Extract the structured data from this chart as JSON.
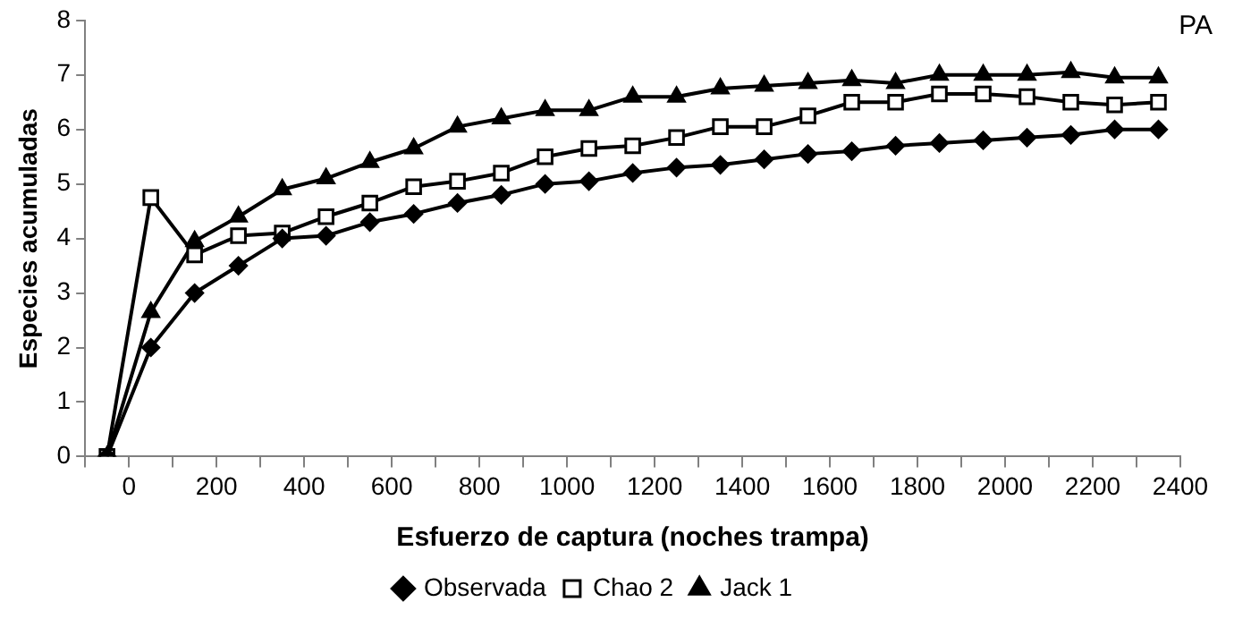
{
  "chart_data": {
    "type": "line",
    "xlabel": "Esfuerzo de captura (noches trampa)",
    "ylabel": "Especies acumuladas",
    "annotations": [
      "PA"
    ],
    "x": [
      -50,
      50,
      150,
      250,
      350,
      450,
      550,
      650,
      750,
      850,
      950,
      1050,
      1150,
      1250,
      1350,
      1450,
      1550,
      1650,
      1750,
      1850,
      1950,
      2050,
      2150,
      2250,
      2350
    ],
    "series": [
      {
        "name": "Observada",
        "color": "#000000",
        "marker": "diamond",
        "values": [
          0,
          2,
          3,
          3.5,
          4,
          4.05,
          4.3,
          4.45,
          4.65,
          4.8,
          5,
          5.05,
          5.2,
          5.3,
          5.35,
          5.45,
          5.55,
          5.6,
          5.7,
          5.75,
          5.8,
          5.85,
          5.9,
          6,
          6
        ]
      },
      {
        "name": "Chao 2",
        "color": "#000000",
        "marker": "square",
        "values": [
          0,
          4.75,
          3.7,
          4.05,
          4.1,
          4.4,
          4.65,
          4.95,
          5.05,
          5.2,
          5.5,
          5.65,
          5.7,
          5.85,
          6.05,
          6.05,
          6.25,
          6.5,
          6.5,
          6.65,
          6.65,
          6.6,
          6.5,
          6.45,
          6.5
        ]
      },
      {
        "name": "Jack 1",
        "color": "#000000",
        "marker": "triangle",
        "values": [
          0,
          2.65,
          3.95,
          4.4,
          4.9,
          5.1,
          5.4,
          5.65,
          6.05,
          6.2,
          6.35,
          6.35,
          6.6,
          6.6,
          6.75,
          6.8,
          6.85,
          6.9,
          6.85,
          7,
          7,
          7,
          7.05,
          6.95,
          6.95
        ]
      }
    ],
    "xlim": [
      -100,
      2400
    ],
    "xticks": [
      {
        "value": -100,
        "label": null
      },
      0,
      {
        "value": 100,
        "label": null
      },
      200,
      {
        "value": 300,
        "label": null
      },
      400,
      {
        "value": 500,
        "label": null
      },
      600,
      {
        "value": 700,
        "label": null
      },
      800,
      {
        "value": 900,
        "label": null
      },
      1000,
      {
        "value": 1100,
        "label": null
      },
      1200,
      {
        "value": 1300,
        "label": null
      },
      1400,
      {
        "value": 1500,
        "label": null
      },
      1600,
      {
        "value": 1700,
        "label": null
      },
      1800,
      {
        "value": 1900,
        "label": null
      },
      2000,
      {
        "value": 2100,
        "label": null
      },
      2200,
      {
        "value": 2300,
        "label": null
      },
      2400
    ],
    "ylim": [
      0,
      8
    ],
    "yticks": [
      0,
      1,
      2,
      3,
      4,
      5,
      6,
      7,
      8
    ],
    "grid": false,
    "legend": "bottom",
    "line_style": "solid"
  }
}
